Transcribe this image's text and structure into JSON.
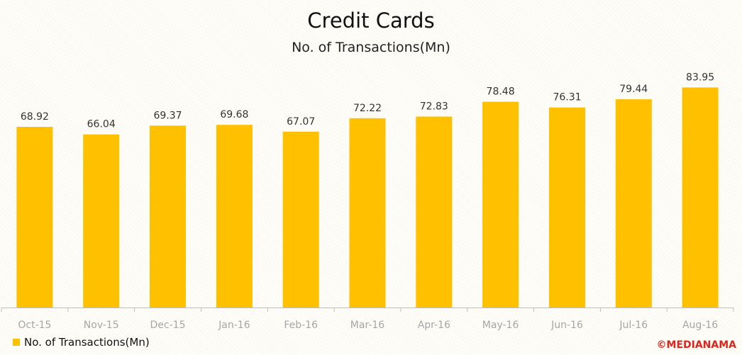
{
  "chart_data": {
    "type": "bar",
    "title": "Credit Cards",
    "subtitle": "No. of Transactions(Mn)",
    "categories": [
      "Oct-15",
      "Nov-15",
      "Dec-15",
      "Jan-16",
      "Feb-16",
      "Mar-16",
      "Apr-16",
      "May-16",
      "Jun-16",
      "Jul-16",
      "Aug-16"
    ],
    "series": [
      {
        "name": "No. of Transactions(Mn)",
        "values": [
          68.92,
          66.04,
          69.37,
          69.68,
          67.07,
          72.22,
          72.83,
          78.48,
          76.31,
          79.44,
          83.95
        ],
        "color": "#ffc000"
      }
    ],
    "data_labels": [
      "68.92",
      "66.04",
      "69.37",
      "69.68",
      "67.07",
      "72.22",
      "72.83",
      "78.48",
      "76.31",
      "79.44",
      "83.95"
    ],
    "ylim": [
      0,
      88
    ],
    "grid": false,
    "legend_position": "bottom-left",
    "colors": {
      "axis": "#bfbfbf",
      "tick_label": "#a6a6a6",
      "data_label": "#333333"
    }
  },
  "watermark": "©MEDIANAMA"
}
